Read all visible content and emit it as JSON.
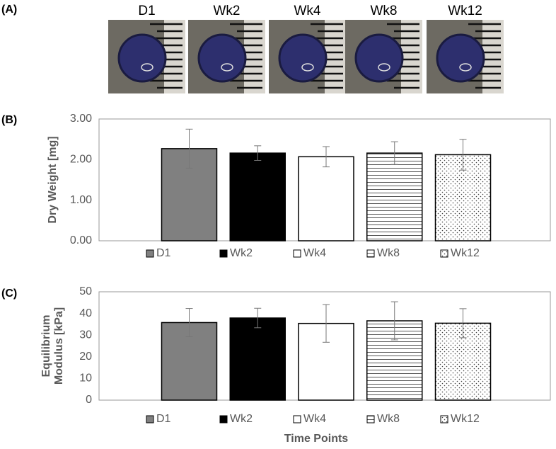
{
  "photos": {
    "panel": "(A)",
    "captions": [
      "D1",
      "Wk2",
      "Wk4",
      "Wk8",
      "Wk12"
    ]
  },
  "chart_data": [
    {
      "type": "bar",
      "panel": "(B)",
      "ylabel": [
        "Dry Weight [mg]"
      ],
      "categories": [
        null
      ],
      "ylim": [
        0,
        3
      ],
      "yticks": [
        {
          "value": 0,
          "label": "0.00"
        },
        {
          "value": 1,
          "label": "1.00"
        },
        {
          "value": 2,
          "label": "2.00"
        },
        {
          "value": 3,
          "label": "3.00"
        }
      ],
      "grid": false,
      "series": [
        {
          "name": "D1",
          "color": "#808080",
          "pattern": "solid",
          "values": [
            2.27
          ],
          "errors": [
            0.48
          ]
        },
        {
          "name": "Wk2",
          "color": "#000000",
          "pattern": "solid",
          "values": [
            2.16
          ],
          "errors": [
            0.18
          ]
        },
        {
          "name": "Wk4",
          "color": "#ffffff",
          "pattern": "solid",
          "values": [
            2.07
          ],
          "errors": [
            0.25
          ]
        },
        {
          "name": "Wk8",
          "color": "#ffffff",
          "pattern": "horizontal",
          "values": [
            2.16
          ],
          "errors": [
            0.28
          ]
        },
        {
          "name": "Wk12",
          "color": "#ffffff",
          "pattern": "dots",
          "values": [
            2.12
          ],
          "errors": [
            0.38
          ]
        }
      ]
    },
    {
      "type": "bar",
      "panel": "(C)",
      "ylabel": [
        "Equilibrium",
        "Modulus [kPa]"
      ],
      "xlabel": "Time Points",
      "categories": [
        null
      ],
      "ylim": [
        0,
        50
      ],
      "yticks": [
        0,
        10,
        20,
        30,
        40,
        50
      ],
      "grid": false,
      "series": [
        {
          "name": "D1",
          "color": "#808080",
          "pattern": "solid",
          "values": [
            35.8
          ],
          "errors": [
            6.5
          ]
        },
        {
          "name": "Wk2",
          "color": "#000000",
          "pattern": "solid",
          "values": [
            37.9
          ],
          "errors": [
            4.5
          ]
        },
        {
          "name": "Wk4",
          "color": "#ffffff",
          "pattern": "solid",
          "values": [
            35.4
          ],
          "errors": [
            8.7
          ]
        },
        {
          "name": "Wk8",
          "color": "#ffffff",
          "pattern": "horizontal",
          "values": [
            36.6
          ],
          "errors": [
            8.8
          ]
        },
        {
          "name": "Wk12",
          "color": "#ffffff",
          "pattern": "dots",
          "values": [
            35.5
          ],
          "errors": [
            6.7
          ]
        }
      ]
    }
  ]
}
